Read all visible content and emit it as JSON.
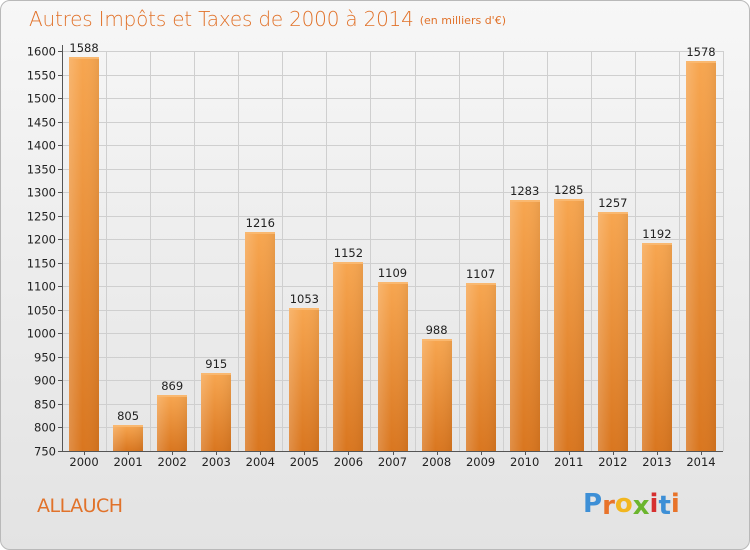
{
  "title": "Autres Impôts et Taxes de 2000 à 2014",
  "subtitle": "(en milliers d'€)",
  "place": "ALLAUCH",
  "logo": {
    "text": "Proxiti",
    "letters": [
      "P",
      "r",
      "o",
      "x",
      "i",
      "t",
      "i"
    ],
    "colors": [
      "#3d8fd6",
      "#e8732a",
      "#f2b61f",
      "#6bb52d",
      "#d62f2f",
      "#3d8fd6",
      "#e8732a"
    ]
  },
  "colors": {
    "accent": "#e1722a",
    "bar_light": "#f7a650",
    "bar_dark": "#d9761f",
    "grid": "#cfcfcf"
  },
  "chart_data": {
    "type": "bar",
    "title": "Autres Impôts et Taxes de 2000 à 2014",
    "subtitle": "(en milliers d'€)",
    "xlabel": "",
    "ylabel": "",
    "categories": [
      "2000",
      "2001",
      "2002",
      "2003",
      "2004",
      "2005",
      "2006",
      "2007",
      "2008",
      "2009",
      "2010",
      "2011",
      "2012",
      "2013",
      "2014"
    ],
    "values": [
      1588,
      805,
      869,
      915,
      1216,
      1053,
      1152,
      1109,
      988,
      1107,
      1283,
      1285,
      1257,
      1192,
      1578
    ],
    "ylim": [
      750,
      1600
    ],
    "yticks": [
      750,
      800,
      850,
      900,
      950,
      1000,
      1050,
      1100,
      1150,
      1200,
      1250,
      1300,
      1350,
      1400,
      1450,
      1500,
      1550,
      1600
    ],
    "grid": true,
    "data_labels": true
  }
}
